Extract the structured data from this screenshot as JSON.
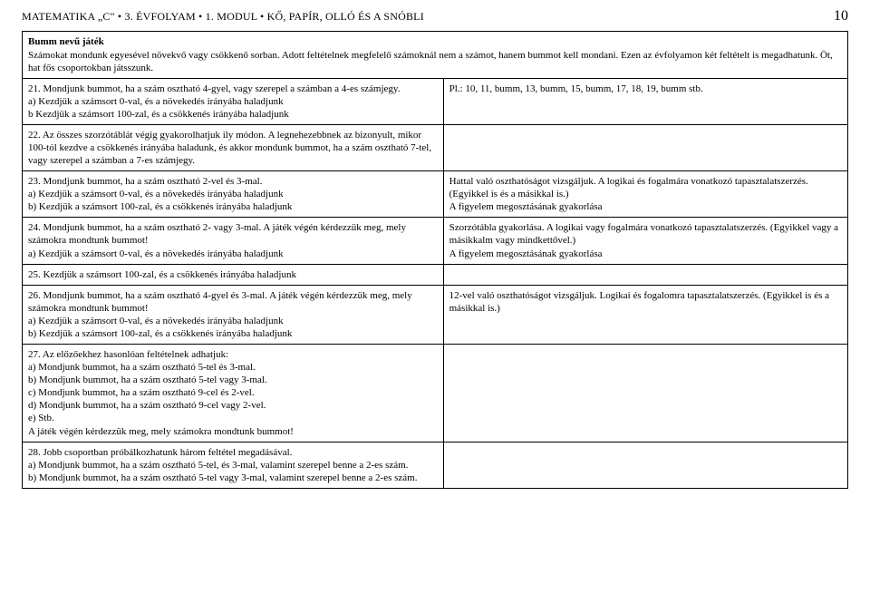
{
  "header": {
    "title": "MATEMATIKA „C\" • 3. ÉVFOLYAM • 1. MODUL • KŐ, PAPÍR, OLLÓ ÉS A SNÓBLI",
    "page_number": "10"
  },
  "intro": {
    "title": "Bumm nevű játék",
    "body": "Számokat mondunk egyesével növekvő vagy csökkenő sorban. Adott feltételnek megfelelő számoknál nem a számot, hanem bummot kell mondani. Ezen az évfolyamon két feltételt is megadhatunk. Öt, hat fős csoportokban játsszunk."
  },
  "rows": [
    {
      "left": "21. Mondjunk bummot, ha a szám osztható 4-gyel, vagy szerepel a számban a 4-es számjegy.\na) Kezdjük a számsort 0-val, és a növekedés irányába haladjunk\nb Kezdjük a számsort 100-zal, és a csökkenés irányába haladjunk",
      "right": "Pl.: 10, 11, bumm, 13, bumm, 15, bumm, 17, 18, 19, bumm stb."
    },
    {
      "left": "22. Az összes szorzótáblát végig gyakorolhatjuk ily módon. A legnehezebbnek az bizonyult, mikor 100-tól kezdve a csökkenés irányába haladunk, és akkor mondunk bummot, ha a szám osztható 7-tel, vagy szerepel a számban a 7-es számjegy.",
      "right": ""
    },
    {
      "left": "23. Mondjunk bummot, ha a szám osztható 2-vel és 3-mal.\na) Kezdjük a számsort 0-val, és a növekedés irányába haladjunk\nb) Kezdjük a számsort 100-zal, és a csökkenés irányába haladjunk",
      "right": "Hattal való oszthatóságot vizsgáljuk. A logikai és fogalmára vonatkozó tapasztalatszerzés. (Egyikkel is és a másikkal is.)\nA figyelem megosztásának gyakorlása"
    },
    {
      "left": "24. Mondjunk bummot, ha a szám osztható 2- vagy 3-mal. A játék végén kérdezzük meg, mely számokra mondtunk bummot!\na) Kezdjük a számsort 0-val, és a növekedés irányába haladjunk",
      "right": "Szorzótábla gyakorlása. A logikai vagy fogalmára vonatkozó tapasztalatszerzés. (Egyikkel vagy a másikkalm vagy mindkettővel.)\nA figyelem megosztásának gyakorlása"
    },
    {
      "left": "25. Kezdjük a számsort 100-zal, és a csökkenés irányába haladjunk",
      "right": ""
    },
    {
      "left": "26. Mondjunk bummot, ha a szám osztható 4-gyel és 3-mal. A játék végén kérdezzük meg, mely számokra mondtunk bummot!\na) Kezdjük a számsort 0-val, és a növekedés irányába haladjunk\nb) Kezdjük a számsort 100-zal, és a csökkenés irányába haladjunk",
      "right": "12-vel való oszthatóságot vizsgáljuk. Logikai és fogalomra tapasztalatszerzés. (Egyikkel is és a másikkal is.)"
    },
    {
      "left": "27. Az előzőekhez hasonlóan feltételnek adhatjuk:\na) Mondjunk bummot, ha a szám osztható 5-tel és 3-mal.\nb) Mondjunk bummot, ha a szám osztható 5-tel vagy 3-mal.\nc) Mondjunk bummot, ha a szám osztható 9-cel és 2-vel.\nd) Mondjunk bummot, ha a szám osztható 9-cel vagy 2-vel.\ne) Stb.\nA játék végén kérdezzük meg, mely számokra mondtunk bummot!",
      "right": ""
    },
    {
      "left": "28. Jobb csoportban próbálkozhatunk három feltétel megadásával.\na) Mondjunk bummot, ha a szám osztható 5-tel, és 3-mal, valamint szerepel benne a 2-es szám.\nb) Mondjunk bummot, ha a szám osztható 5-tel vagy 3-mal, valamint szerepel benne a 2-es szám.",
      "right": ""
    }
  ]
}
